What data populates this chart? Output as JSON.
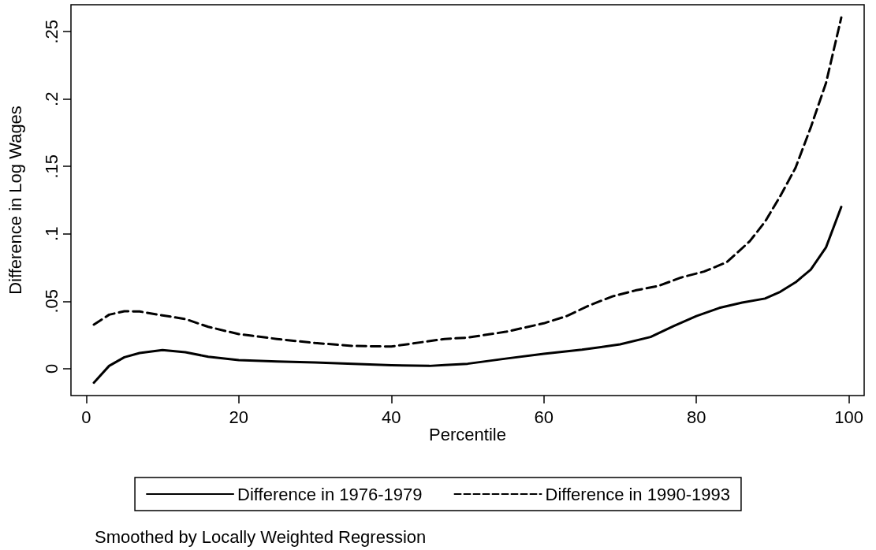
{
  "chart_data": {
    "type": "line",
    "xlabel": "Percentile",
    "ylabel": "Difference in Log Wages",
    "annotations": [
      "Smoothed by Locally Weighted Regression"
    ],
    "xlim": [
      -2,
      102
    ],
    "xticks": [
      0,
      20,
      40,
      60,
      80,
      100
    ],
    "ylim": [
      -0.02,
      0.27
    ],
    "yticks": [
      {
        "value": 0,
        "label": "0"
      },
      {
        "value": 0.05,
        "label": ".05"
      },
      {
        "value": 0.1,
        "label": ".1"
      },
      {
        "value": 0.15,
        "label": ".15"
      },
      {
        "value": 0.2,
        "label": ".2"
      },
      {
        "value": 0.25,
        "label": ".25"
      }
    ],
    "grid": false,
    "legend": "bottom",
    "marker": "none",
    "series": [
      {
        "name": "Difference in 1976-1979",
        "color": "#000000",
        "line_style": "solid",
        "x": [
          1,
          3,
          5,
          7,
          10,
          13,
          16,
          20,
          25,
          30,
          35,
          40,
          45,
          47,
          50,
          55,
          60,
          65,
          70,
          74,
          77,
          80,
          83,
          86,
          89,
          91,
          93,
          95,
          97,
          99
        ],
        "values": [
          -0.0105,
          0.002,
          0.0084,
          0.0116,
          0.0137,
          0.0122,
          0.0088,
          0.0063,
          0.0053,
          0.0046,
          0.0036,
          0.0025,
          0.002,
          0.0027,
          0.0036,
          0.0074,
          0.011,
          0.014,
          0.018,
          0.0235,
          0.0315,
          0.039,
          0.045,
          0.049,
          0.052,
          0.057,
          0.064,
          0.0735,
          0.09,
          0.12
        ]
      },
      {
        "name": "Difference in 1990-1993",
        "color": "#000000",
        "line_style": "dashed",
        "x": [
          1,
          3,
          5,
          7,
          10,
          13,
          16,
          20,
          25,
          30,
          35,
          40,
          47,
          50,
          55,
          60,
          63,
          66,
          69,
          72,
          75,
          78,
          81,
          84,
          87,
          89,
          91,
          93,
          95,
          97,
          99
        ],
        "values": [
          0.0326,
          0.04,
          0.0426,
          0.0424,
          0.0395,
          0.0368,
          0.031,
          0.0256,
          0.022,
          0.019,
          0.0168,
          0.0164,
          0.022,
          0.023,
          0.0273,
          0.0336,
          0.039,
          0.047,
          0.0536,
          0.058,
          0.0613,
          0.0676,
          0.072,
          0.079,
          0.0945,
          0.109,
          0.128,
          0.149,
          0.179,
          0.212,
          0.2605
        ]
      }
    ]
  }
}
